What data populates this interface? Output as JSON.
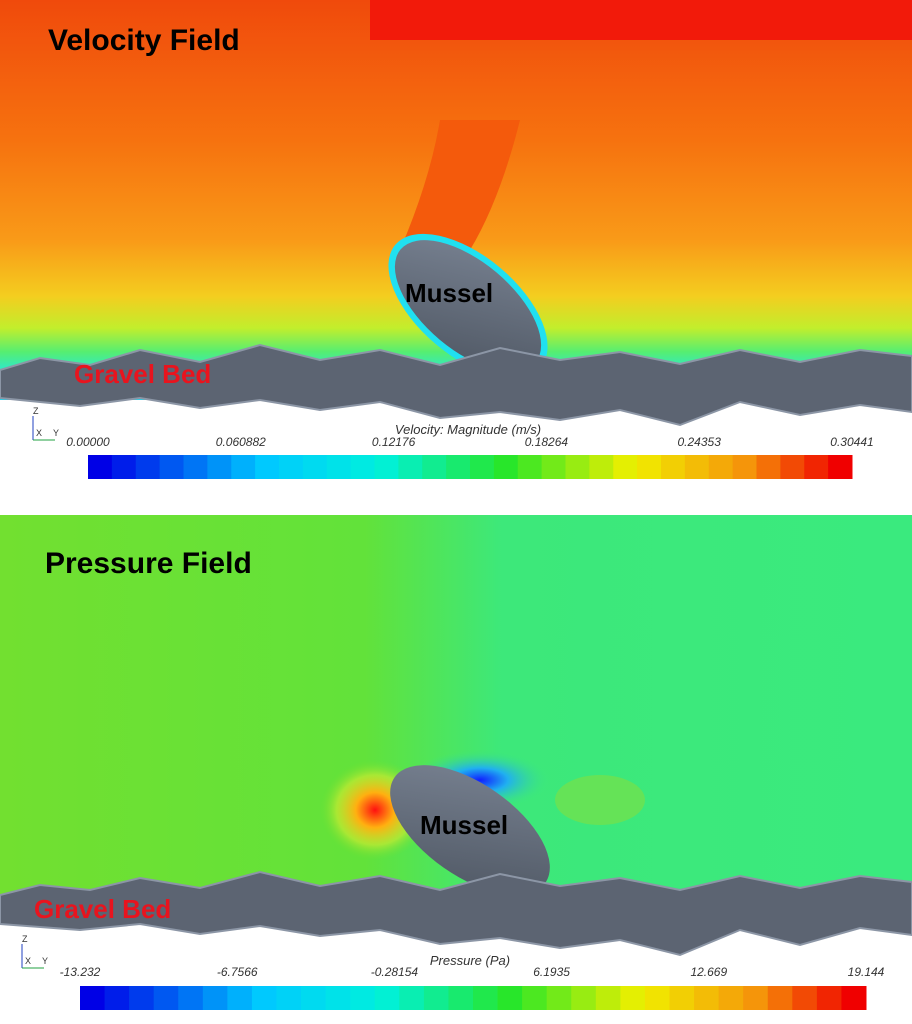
{
  "panels": [
    {
      "title": "Velocity Field",
      "object_label": "Mussel",
      "bed_label": "Gravel Bed",
      "triad": [
        "Z",
        "X",
        "Y"
      ],
      "colorbar_title": "Velocity: Magnitude (m/s)",
      "colorbar_ticks": [
        "0.00000",
        "0.060882",
        "0.12176",
        "0.18264",
        "0.24353",
        "0.30441"
      ]
    },
    {
      "title": "Pressure Field",
      "object_label": "Mussel",
      "bed_label": "Gravel Bed",
      "triad": [
        "Z",
        "X",
        "Y"
      ],
      "colorbar_title": "Pressure (Pa)",
      "colorbar_ticks": [
        "-13.232",
        "-6.7566",
        "-0.28154",
        "6.1935",
        "12.669",
        "19.144"
      ]
    }
  ]
}
